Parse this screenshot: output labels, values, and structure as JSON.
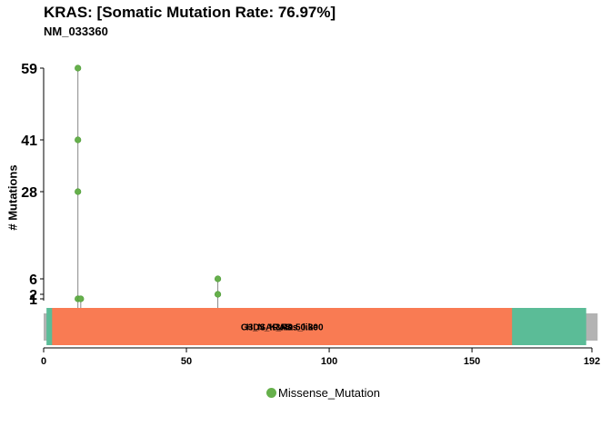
{
  "header": {
    "title": "KRAS: [Somatic Mutation Rate: 76.97%]",
    "subtitle": "NM_033360"
  },
  "chart_data": {
    "type": "lollipop",
    "ylabel": "# Mutations",
    "xlim": [
      0,
      192
    ],
    "x_ticks": [
      0,
      50,
      100,
      150,
      192
    ],
    "y_ticks": [
      1,
      2,
      6,
      28,
      41,
      59
    ],
    "protein_length": 192,
    "mutations": [
      {
        "position": 12,
        "count": 59,
        "class": "Missense_Mutation"
      },
      {
        "position": 12,
        "count": 41,
        "class": "Missense_Mutation"
      },
      {
        "position": 12,
        "count": 28,
        "class": "Missense_Mutation"
      },
      {
        "position": 12,
        "count": 1,
        "class": "Missense_Mutation"
      },
      {
        "position": 13,
        "count": 1,
        "class": "Missense_Mutation"
      },
      {
        "position": 61,
        "count": 6,
        "class": "Missense_Mutation"
      },
      {
        "position": 61,
        "count": 2,
        "class": "Missense_Mutation"
      }
    ],
    "domains": [
      {
        "label": "",
        "start": 1,
        "end": 190,
        "color": "#5BBC97"
      },
      {
        "label": "H_N_K_Ras_like",
        "start": 3,
        "end": 164,
        "color": "#F97B53"
      },
      {
        "label": "RAS",
        "start": 3,
        "end": 164,
        "color": "#F97B53"
      },
      {
        "label": "G3DSA:3.40.50.300",
        "start": 3,
        "end": 164,
        "color": "#F97B53"
      }
    ],
    "legend": [
      {
        "label": "Missense_Mutation",
        "color": "#66B04B"
      }
    ],
    "legend_position": "bottom"
  }
}
